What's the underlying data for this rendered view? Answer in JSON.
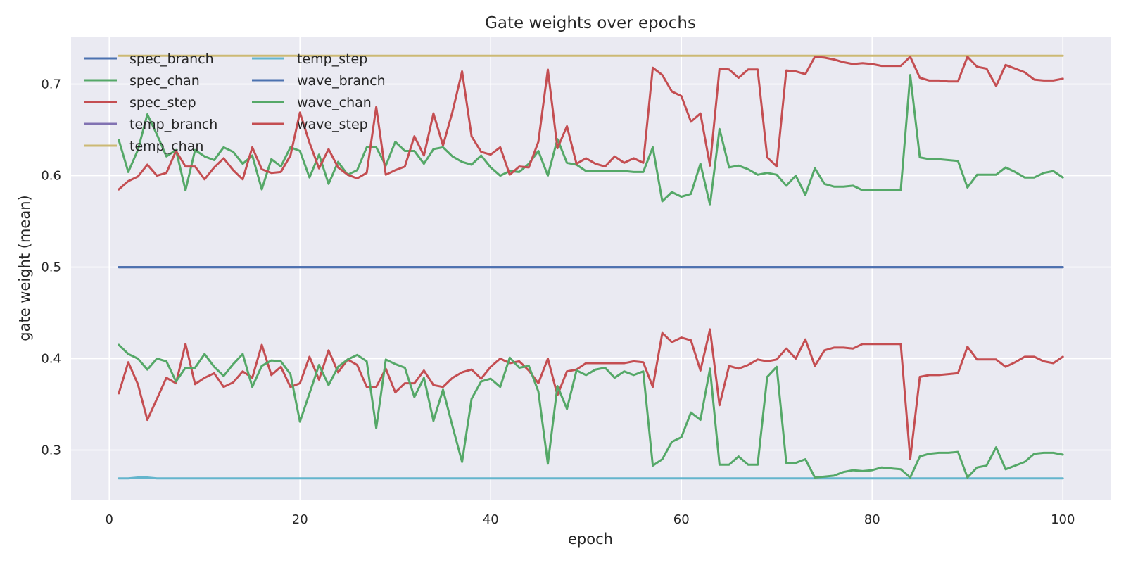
{
  "chart_data": {
    "type": "line",
    "title": "Gate weights over epochs",
    "xlabel": "epoch",
    "ylabel": "gate weight (mean)",
    "xlim": [
      -4,
      105
    ],
    "ylim": [
      0.245,
      0.752
    ],
    "xticks": [
      0,
      20,
      40,
      60,
      80,
      100
    ],
    "yticks": [
      0.3,
      0.4,
      0.5,
      0.6,
      0.7
    ],
    "ytick_labels": [
      "0.3",
      "0.4",
      "0.5",
      "0.6",
      "0.7"
    ],
    "grid": true,
    "legend": {
      "placement": "top-left",
      "columns": 2
    },
    "x": [
      1,
      2,
      3,
      4,
      5,
      6,
      7,
      8,
      9,
      10,
      11,
      12,
      13,
      14,
      15,
      16,
      17,
      18,
      19,
      20,
      21,
      22,
      23,
      24,
      25,
      26,
      27,
      28,
      29,
      30,
      31,
      32,
      33,
      34,
      35,
      36,
      37,
      38,
      39,
      40,
      41,
      42,
      43,
      44,
      45,
      46,
      47,
      48,
      49,
      50,
      51,
      52,
      53,
      54,
      55,
      56,
      57,
      58,
      59,
      60,
      61,
      62,
      63,
      64,
      65,
      66,
      67,
      68,
      69,
      70,
      71,
      72,
      73,
      74,
      75,
      76,
      77,
      78,
      79,
      80,
      81,
      82,
      83,
      84,
      85,
      86,
      87,
      88,
      89,
      90,
      91,
      92,
      93,
      94,
      95,
      96,
      97,
      98,
      99,
      100
    ],
    "series": [
      {
        "name": "spec_branch",
        "color": "#4c72b0",
        "values": [
          0.5,
          0.5,
          0.5,
          0.5,
          0.5,
          0.5,
          0.5,
          0.5,
          0.5,
          0.5,
          0.5,
          0.5,
          0.5,
          0.5,
          0.5,
          0.5,
          0.5,
          0.5,
          0.5,
          0.5,
          0.5,
          0.5,
          0.5,
          0.5,
          0.5,
          0.5,
          0.5,
          0.5,
          0.5,
          0.5,
          0.5,
          0.5,
          0.5,
          0.5,
          0.5,
          0.5,
          0.5,
          0.5,
          0.5,
          0.5,
          0.5,
          0.5,
          0.5,
          0.5,
          0.5,
          0.5,
          0.5,
          0.5,
          0.5,
          0.5,
          0.5,
          0.5,
          0.5,
          0.5,
          0.5,
          0.5,
          0.5,
          0.5,
          0.5,
          0.5,
          0.5,
          0.5,
          0.5,
          0.5,
          0.5,
          0.5,
          0.5,
          0.5,
          0.5,
          0.5,
          0.5,
          0.5,
          0.5,
          0.5,
          0.5,
          0.5,
          0.5,
          0.5,
          0.5,
          0.5,
          0.5,
          0.5,
          0.5,
          0.5,
          0.5,
          0.5,
          0.5,
          0.5,
          0.5,
          0.5,
          0.5,
          0.5,
          0.5,
          0.5,
          0.5,
          0.5,
          0.5,
          0.5,
          0.5,
          0.5
        ]
      },
      {
        "name": "spec_chan",
        "color": "#55a868",
        "values": [
          0.639,
          0.604,
          0.628,
          0.667,
          0.645,
          0.621,
          0.628,
          0.584,
          0.628,
          0.621,
          0.617,
          0.631,
          0.626,
          0.613,
          0.622,
          0.585,
          0.618,
          0.61,
          0.631,
          0.627,
          0.598,
          0.623,
          0.591,
          0.615,
          0.601,
          0.606,
          0.631,
          0.631,
          0.611,
          0.637,
          0.627,
          0.627,
          0.613,
          0.629,
          0.631,
          0.621,
          0.615,
          0.612,
          0.622,
          0.609,
          0.6,
          0.605,
          0.604,
          0.613,
          0.627,
          0.6,
          0.64,
          0.614,
          0.612,
          0.605,
          0.605,
          0.605,
          0.605,
          0.605,
          0.604,
          0.604,
          0.631,
          0.572,
          0.582,
          0.577,
          0.58,
          0.613,
          0.568,
          0.651,
          0.609,
          0.611,
          0.607,
          0.601,
          0.603,
          0.601,
          0.589,
          0.6,
          0.579,
          0.608,
          0.591,
          0.588,
          0.588,
          0.589,
          0.584,
          0.584,
          0.584,
          0.584,
          0.584,
          0.71,
          0.62,
          0.618,
          0.618,
          0.617,
          0.616,
          0.587,
          0.601,
          0.601,
          0.601,
          0.609,
          0.604,
          0.598,
          0.598,
          0.603,
          0.605,
          0.598
        ]
      },
      {
        "name": "spec_step",
        "color": "#c44e52",
        "values": [
          0.362,
          0.396,
          0.372,
          0.333,
          0.356,
          0.379,
          0.373,
          0.416,
          0.372,
          0.379,
          0.384,
          0.369,
          0.374,
          0.386,
          0.379,
          0.415,
          0.382,
          0.391,
          0.369,
          0.373,
          0.402,
          0.377,
          0.409,
          0.385,
          0.399,
          0.393,
          0.369,
          0.369,
          0.389,
          0.363,
          0.373,
          0.373,
          0.387,
          0.371,
          0.369,
          0.379,
          0.385,
          0.388,
          0.378,
          0.391,
          0.4,
          0.395,
          0.397,
          0.387,
          0.373,
          0.4,
          0.36,
          0.386,
          0.388,
          0.395,
          0.395,
          0.395,
          0.395,
          0.395,
          0.397,
          0.396,
          0.369,
          0.428,
          0.418,
          0.423,
          0.42,
          0.387,
          0.432,
          0.349,
          0.392,
          0.389,
          0.393,
          0.399,
          0.397,
          0.399,
          0.411,
          0.4,
          0.421,
          0.392,
          0.409,
          0.412,
          0.412,
          0.411,
          0.416,
          0.416,
          0.416,
          0.416,
          0.416,
          0.29,
          0.38,
          0.382,
          0.382,
          0.383,
          0.384,
          0.413,
          0.399,
          0.399,
          0.399,
          0.391,
          0.396,
          0.402,
          0.402,
          0.397,
          0.395,
          0.402
        ]
      },
      {
        "name": "temp_branch",
        "color": "#8172b2",
        "values": [
          0.5,
          0.5,
          0.5,
          0.5,
          0.5,
          0.5,
          0.5,
          0.5,
          0.5,
          0.5,
          0.5,
          0.5,
          0.5,
          0.5,
          0.5,
          0.5,
          0.5,
          0.5,
          0.5,
          0.5,
          0.5,
          0.5,
          0.5,
          0.5,
          0.5,
          0.5,
          0.5,
          0.5,
          0.5,
          0.5,
          0.5,
          0.5,
          0.5,
          0.5,
          0.5,
          0.5,
          0.5,
          0.5,
          0.5,
          0.5,
          0.5,
          0.5,
          0.5,
          0.5,
          0.5,
          0.5,
          0.5,
          0.5,
          0.5,
          0.5,
          0.5,
          0.5,
          0.5,
          0.5,
          0.5,
          0.5,
          0.5,
          0.5,
          0.5,
          0.5,
          0.5,
          0.5,
          0.5,
          0.5,
          0.5,
          0.5,
          0.5,
          0.5,
          0.5,
          0.5,
          0.5,
          0.5,
          0.5,
          0.5,
          0.5,
          0.5,
          0.5,
          0.5,
          0.5,
          0.5,
          0.5,
          0.5,
          0.5,
          0.5,
          0.5,
          0.5,
          0.5,
          0.5,
          0.5,
          0.5,
          0.5,
          0.5,
          0.5,
          0.5,
          0.5,
          0.5,
          0.5,
          0.5,
          0.5,
          0.5
        ]
      },
      {
        "name": "temp_chan",
        "color": "#ccb974",
        "values": [
          0.731,
          0.731,
          0.731,
          0.731,
          0.731,
          0.731,
          0.731,
          0.731,
          0.731,
          0.731,
          0.731,
          0.731,
          0.731,
          0.731,
          0.731,
          0.731,
          0.731,
          0.731,
          0.731,
          0.731,
          0.731,
          0.731,
          0.731,
          0.731,
          0.731,
          0.731,
          0.731,
          0.731,
          0.731,
          0.731,
          0.731,
          0.731,
          0.731,
          0.731,
          0.731,
          0.731,
          0.731,
          0.731,
          0.731,
          0.731,
          0.731,
          0.731,
          0.731,
          0.731,
          0.731,
          0.731,
          0.731,
          0.731,
          0.731,
          0.731,
          0.731,
          0.731,
          0.731,
          0.731,
          0.731,
          0.731,
          0.731,
          0.731,
          0.731,
          0.731,
          0.731,
          0.731,
          0.731,
          0.731,
          0.731,
          0.731,
          0.731,
          0.731,
          0.731,
          0.731,
          0.731,
          0.731,
          0.731,
          0.731,
          0.731,
          0.731,
          0.731,
          0.731,
          0.731,
          0.731,
          0.731,
          0.731,
          0.731,
          0.731,
          0.731,
          0.731,
          0.731,
          0.731,
          0.731,
          0.731,
          0.731,
          0.731,
          0.731,
          0.731,
          0.731,
          0.731,
          0.731,
          0.731,
          0.731,
          0.731
        ]
      },
      {
        "name": "temp_step",
        "color": "#64b5cd",
        "values": [
          0.269,
          0.269,
          0.27,
          0.27,
          0.269,
          0.269,
          0.269,
          0.269,
          0.269,
          0.269,
          0.269,
          0.269,
          0.269,
          0.269,
          0.269,
          0.269,
          0.269,
          0.269,
          0.269,
          0.269,
          0.269,
          0.269,
          0.269,
          0.269,
          0.269,
          0.269,
          0.269,
          0.269,
          0.269,
          0.269,
          0.269,
          0.269,
          0.269,
          0.269,
          0.269,
          0.269,
          0.269,
          0.269,
          0.269,
          0.269,
          0.269,
          0.269,
          0.269,
          0.269,
          0.269,
          0.269,
          0.269,
          0.269,
          0.269,
          0.269,
          0.269,
          0.269,
          0.269,
          0.269,
          0.269,
          0.269,
          0.269,
          0.269,
          0.269,
          0.269,
          0.269,
          0.269,
          0.269,
          0.269,
          0.269,
          0.269,
          0.269,
          0.269,
          0.269,
          0.269,
          0.269,
          0.269,
          0.269,
          0.269,
          0.269,
          0.269,
          0.269,
          0.269,
          0.269,
          0.269,
          0.269,
          0.269,
          0.269,
          0.269,
          0.269,
          0.269,
          0.269,
          0.269,
          0.269,
          0.269,
          0.269,
          0.269,
          0.269,
          0.269,
          0.269,
          0.269,
          0.269,
          0.269,
          0.269,
          0.269
        ]
      },
      {
        "name": "wave_branch",
        "color": "#4c72b0",
        "values": [
          0.5,
          0.5,
          0.5,
          0.5,
          0.5,
          0.5,
          0.5,
          0.5,
          0.5,
          0.5,
          0.5,
          0.5,
          0.5,
          0.5,
          0.5,
          0.5,
          0.5,
          0.5,
          0.5,
          0.5,
          0.5,
          0.5,
          0.5,
          0.5,
          0.5,
          0.5,
          0.5,
          0.5,
          0.5,
          0.5,
          0.5,
          0.5,
          0.5,
          0.5,
          0.5,
          0.5,
          0.5,
          0.5,
          0.5,
          0.5,
          0.5,
          0.5,
          0.5,
          0.5,
          0.5,
          0.5,
          0.5,
          0.5,
          0.5,
          0.5,
          0.5,
          0.5,
          0.5,
          0.5,
          0.5,
          0.5,
          0.5,
          0.5,
          0.5,
          0.5,
          0.5,
          0.5,
          0.5,
          0.5,
          0.5,
          0.5,
          0.5,
          0.5,
          0.5,
          0.5,
          0.5,
          0.5,
          0.5,
          0.5,
          0.5,
          0.5,
          0.5,
          0.5,
          0.5,
          0.5,
          0.5,
          0.5,
          0.5,
          0.5,
          0.5,
          0.5,
          0.5,
          0.5,
          0.5,
          0.5,
          0.5,
          0.5,
          0.5,
          0.5,
          0.5,
          0.5,
          0.5,
          0.5,
          0.5,
          0.5
        ]
      },
      {
        "name": "wave_chan",
        "color": "#55a868",
        "values": [
          0.415,
          0.405,
          0.4,
          0.388,
          0.4,
          0.397,
          0.375,
          0.39,
          0.39,
          0.405,
          0.391,
          0.381,
          0.394,
          0.405,
          0.369,
          0.392,
          0.398,
          0.397,
          0.383,
          0.331,
          0.362,
          0.393,
          0.371,
          0.391,
          0.399,
          0.404,
          0.397,
          0.324,
          0.399,
          0.394,
          0.39,
          0.358,
          0.379,
          0.332,
          0.366,
          0.326,
          0.287,
          0.356,
          0.375,
          0.378,
          0.369,
          0.401,
          0.39,
          0.392,
          0.364,
          0.285,
          0.37,
          0.345,
          0.387,
          0.382,
          0.388,
          0.39,
          0.379,
          0.386,
          0.382,
          0.386,
          0.283,
          0.29,
          0.309,
          0.314,
          0.341,
          0.333,
          0.389,
          0.284,
          0.284,
          0.293,
          0.284,
          0.284,
          0.38,
          0.391,
          0.286,
          0.286,
          0.29,
          0.27,
          0.271,
          0.272,
          0.276,
          0.278,
          0.277,
          0.278,
          0.281,
          0.28,
          0.279,
          0.27,
          0.293,
          0.296,
          0.297,
          0.297,
          0.298,
          0.27,
          0.281,
          0.283,
          0.303,
          0.279,
          0.283,
          0.287,
          0.296,
          0.297,
          0.297,
          0.295
        ]
      },
      {
        "name": "wave_step",
        "color": "#c44e52",
        "values": [
          0.585,
          0.594,
          0.599,
          0.612,
          0.6,
          0.603,
          0.627,
          0.61,
          0.61,
          0.596,
          0.609,
          0.619,
          0.606,
          0.596,
          0.631,
          0.607,
          0.603,
          0.604,
          0.622,
          0.669,
          0.636,
          0.608,
          0.629,
          0.609,
          0.601,
          0.597,
          0.603,
          0.675,
          0.601,
          0.606,
          0.61,
          0.643,
          0.622,
          0.668,
          0.633,
          0.67,
          0.714,
          0.643,
          0.626,
          0.623,
          0.631,
          0.601,
          0.61,
          0.609,
          0.637,
          0.716,
          0.63,
          0.654,
          0.613,
          0.619,
          0.613,
          0.61,
          0.621,
          0.614,
          0.619,
          0.614,
          0.718,
          0.71,
          0.692,
          0.687,
          0.659,
          0.668,
          0.611,
          0.717,
          0.716,
          0.707,
          0.716,
          0.716,
          0.62,
          0.61,
          0.715,
          0.714,
          0.711,
          0.73,
          0.729,
          0.727,
          0.724,
          0.722,
          0.723,
          0.722,
          0.72,
          0.72,
          0.72,
          0.73,
          0.707,
          0.704,
          0.704,
          0.703,
          0.703,
          0.73,
          0.719,
          0.717,
          0.698,
          0.721,
          0.717,
          0.713,
          0.705,
          0.704,
          0.704,
          0.706
        ]
      }
    ]
  }
}
